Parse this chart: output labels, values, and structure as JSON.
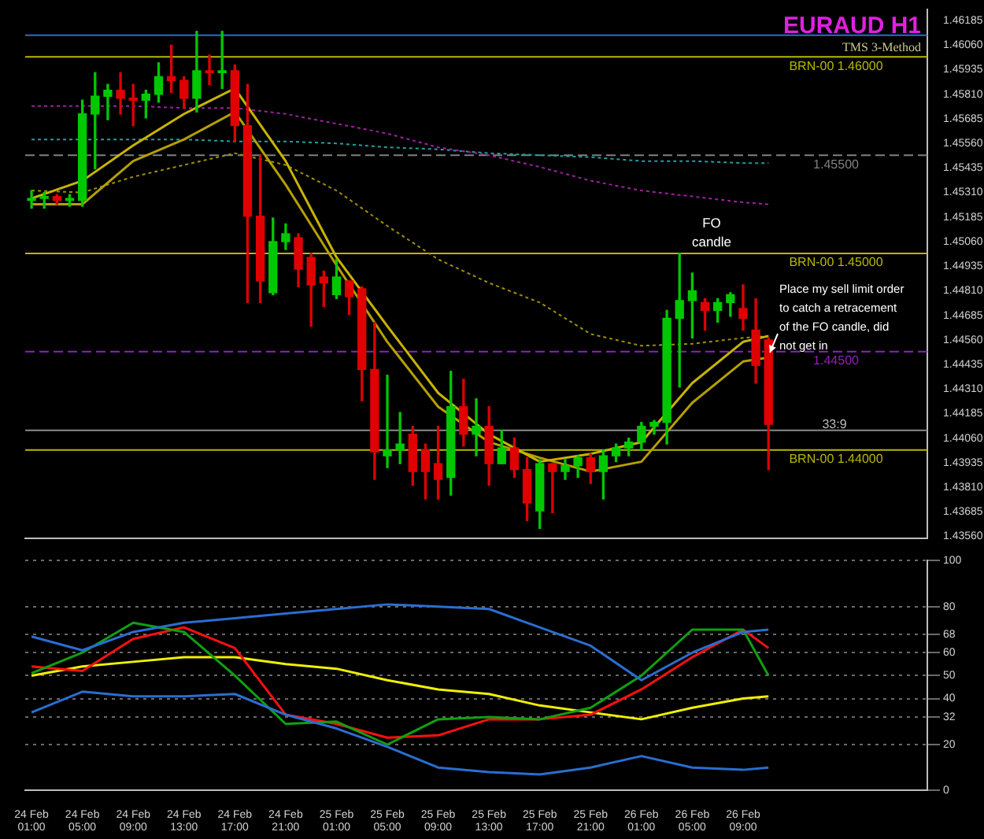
{
  "chart_data": [
    {
      "type": "candlestick",
      "title": "EURAUD H1",
      "subtitle": "TMS 3-Method",
      "categories": [
        null,
        null,
        null,
        null,
        null,
        null,
        null,
        null,
        null,
        null,
        null,
        null,
        null,
        null,
        null,
        null,
        null,
        null,
        null,
        null,
        null,
        null,
        null,
        null,
        null,
        null,
        null,
        null,
        null,
        null,
        null,
        null,
        null,
        null,
        null,
        null,
        null,
        null,
        null,
        null,
        null,
        null,
        null,
        null,
        null,
        null,
        null,
        null,
        null,
        null,
        null,
        null,
        null,
        null,
        null,
        null,
        null,
        null,
        null,
        null,
        null,
        null,
        null,
        null,
        null,
        null,
        null,
        null,
        null,
        null,
        null
      ],
      "ohlc": [
        [
          1.4527,
          1.4532,
          1.4523,
          1.4528
        ],
        [
          1.4528,
          1.4531,
          1.4523,
          1.4529
        ],
        [
          1.4529,
          1.453,
          1.4525,
          1.4527
        ],
        [
          1.4527,
          1.453,
          1.4524,
          1.4528
        ],
        [
          1.4527,
          1.4578,
          1.4524,
          1.4571
        ],
        [
          1.4571,
          1.4592,
          1.4543,
          1.458
        ],
        [
          1.458,
          1.4586,
          1.4568,
          1.4583
        ],
        [
          1.4583,
          1.4592,
          1.4571,
          1.4579
        ],
        [
          1.4579,
          1.4586,
          1.4565,
          1.4578
        ],
        [
          1.4578,
          1.4583,
          1.4569,
          1.4581
        ],
        [
          1.4581,
          1.4597,
          1.4577,
          1.459
        ],
        [
          1.459,
          1.4606,
          1.4582,
          1.4588
        ],
        [
          1.4588,
          1.459,
          1.4574,
          1.4579
        ],
        [
          1.4579,
          1.4613,
          1.4572,
          1.4593
        ],
        [
          1.4593,
          1.4601,
          1.4586,
          1.4592
        ],
        [
          1.4592,
          1.4613,
          1.4584,
          1.4593
        ],
        [
          1.4593,
          1.4596,
          1.4557,
          1.4565
        ],
        [
          1.4565,
          1.4586,
          1.4475,
          1.4519
        ],
        [
          1.4519,
          1.455,
          1.4475,
          1.4486
        ],
        [
          1.448,
          1.4518,
          1.4479,
          1.4506
        ],
        [
          1.4506,
          1.4515,
          1.4502,
          1.451
        ],
        [
          1.4508,
          1.451,
          1.4483,
          1.4492
        ],
        [
          1.4498,
          1.45,
          1.4463,
          1.4484
        ],
        [
          1.4488,
          1.4491,
          1.4473,
          1.4485
        ],
        [
          1.4479,
          1.4497,
          1.4477,
          1.4488
        ],
        [
          1.4486,
          1.4486,
          1.4469,
          1.4478
        ],
        [
          1.4482,
          1.4483,
          1.4425,
          1.4441
        ],
        [
          1.4441,
          1.4465,
          1.4385,
          1.4399
        ],
        [
          1.4397,
          1.4438,
          1.4391,
          1.44
        ],
        [
          1.44,
          1.4419,
          1.4393,
          1.4403
        ],
        [
          1.4408,
          1.4412,
          1.4382,
          1.4389
        ],
        [
          1.44,
          1.4403,
          1.4375,
          1.4389
        ],
        [
          1.4393,
          1.4412,
          1.4375,
          1.4385
        ],
        [
          1.4386,
          1.444,
          1.4377,
          1.4422
        ],
        [
          1.4422,
          1.4436,
          1.4402,
          1.4408
        ],
        [
          1.4408,
          1.4426,
          1.4397,
          1.4412
        ],
        [
          1.4412,
          1.4422,
          1.4382,
          1.4393
        ],
        [
          1.4393,
          1.441,
          1.4393,
          1.4401
        ],
        [
          1.4401,
          1.4406,
          1.4386,
          1.439
        ],
        [
          1.439,
          1.4396,
          1.4364,
          1.4373
        ],
        [
          1.4369,
          1.4395,
          1.436,
          1.4393
        ],
        [
          1.4393,
          1.4393,
          1.4368,
          1.4389
        ],
        [
          1.4389,
          1.4395,
          1.4385,
          1.4392
        ],
        [
          1.4392,
          1.4397,
          1.4386,
          1.4396
        ],
        [
          1.4396,
          1.4398,
          1.4383,
          1.4389
        ],
        [
          1.4389,
          1.44,
          1.4375,
          1.4397
        ],
        [
          1.4397,
          1.4403,
          1.4394,
          1.4401
        ],
        [
          1.4401,
          1.4406,
          1.4397,
          1.4404
        ],
        [
          1.4404,
          1.4414,
          1.44,
          1.4412
        ],
        [
          1.4412,
          1.4415,
          1.4408,
          1.4414
        ],
        [
          1.4414,
          1.4471,
          1.4403,
          1.4467
        ],
        [
          1.4467,
          1.45,
          1.4432,
          1.4476
        ],
        [
          1.4476,
          1.449,
          1.4457,
          1.4481
        ],
        [
          1.4475,
          1.4477,
          1.4461,
          1.4471
        ],
        [
          1.4471,
          1.4477,
          1.4465,
          1.4475
        ],
        [
          1.4475,
          1.448,
          1.4468,
          1.4479
        ],
        [
          1.4472,
          1.4484,
          1.4461,
          1.4467
        ],
        [
          1.4461,
          1.4477,
          1.4434,
          1.4443
        ],
        [
          1.4456,
          1.4457,
          1.439,
          1.4413
        ],
        null,
        null,
        null,
        null,
        null,
        null,
        null,
        null,
        null,
        null,
        null,
        null
      ],
      "colors": [
        "#00c800",
        "#00c800",
        "#e00000",
        "#00c800",
        "#00c800",
        "#00c800",
        "#00c800",
        "#e00000",
        "#e00000",
        "#00c800",
        "#00c800",
        "#e00000",
        "#e00000",
        "#00c800",
        "#e00000",
        "#00c800",
        "#e00000",
        "#e00000",
        "#e00000",
        "#00c800",
        "#00c800",
        "#e00000",
        "#e00000",
        "#e00000",
        "#00c800",
        "#e00000",
        "#e00000",
        "#e00000",
        "#00c800",
        "#00c800",
        "#e00000",
        "#e00000",
        "#e00000",
        "#00c800",
        "#e00000",
        "#00c800",
        "#e00000",
        "#00c800",
        "#e00000",
        "#e00000",
        "#00c800",
        "#e00000",
        "#00c800",
        "#00c800",
        "#e00000",
        "#00c800",
        "#00c800",
        "#00c800",
        "#00c800",
        "#00c800",
        "#00c800",
        "#00c800",
        "#00c800",
        "#e00000",
        "#00c800",
        "#00c800",
        "#e00000",
        "#e00000",
        "#e00000",
        null,
        null,
        null,
        null,
        null,
        null,
        null,
        null,
        null,
        null,
        null,
        null
      ],
      "series": [
        {
          "type": "line",
          "color": "#c8b400",
          "line_style": "solid",
          "values": [
            1.4528,
            null,
            null,
            null,
            1.4537,
            null,
            null,
            null,
            1.4555,
            null,
            null,
            null,
            1.4571,
            null,
            null,
            null,
            1.4584,
            null,
            null,
            null,
            1.4547,
            null,
            null,
            null,
            1.4498,
            null,
            null,
            null,
            1.4463,
            null,
            null,
            null,
            1.4429,
            null,
            null,
            null,
            1.4408,
            null,
            null,
            null,
            1.4394,
            null,
            null,
            null,
            1.4398,
            null,
            null,
            null,
            1.4404,
            null,
            null,
            null,
            1.4434,
            null,
            null,
            null,
            1.4455,
            null,
            1.4458,
            null,
            null,
            null,
            null,
            null,
            null,
            null,
            null,
            null,
            null,
            null,
            null
          ]
        },
        {
          "type": "line",
          "color": "#b4a000",
          "line_style": "solid",
          "values": [
            1.4525,
            null,
            null,
            null,
            1.4525,
            null,
            null,
            null,
            1.4547,
            null,
            null,
            null,
            1.4558,
            null,
            null,
            null,
            1.4572,
            null,
            null,
            null,
            1.4535,
            null,
            null,
            null,
            1.4494,
            null,
            null,
            null,
            1.4455,
            null,
            null,
            null,
            1.4422,
            null,
            null,
            null,
            1.4404,
            null,
            null,
            null,
            1.4396,
            null,
            null,
            null,
            1.4389,
            null,
            null,
            null,
            1.4394,
            null,
            null,
            null,
            1.4424,
            null,
            null,
            null,
            1.4445,
            null,
            1.4447,
            null,
            null,
            null,
            null,
            null,
            null,
            null,
            null,
            null,
            null,
            null,
            null
          ]
        },
        {
          "type": "line",
          "color": "#a09000",
          "line_style": "dotted",
          "values": [
            1.4532,
            null,
            null,
            null,
            1.4531,
            null,
            null,
            null,
            1.4539,
            null,
            null,
            null,
            1.4545,
            null,
            null,
            null,
            1.4551,
            null,
            null,
            null,
            1.4545,
            null,
            null,
            null,
            1.4532,
            null,
            null,
            null,
            1.4514,
            null,
            null,
            null,
            1.4497,
            null,
            null,
            null,
            1.4485,
            null,
            null,
            null,
            1.4475,
            null,
            null,
            null,
            1.4459,
            null,
            null,
            null,
            1.4453,
            null,
            null,
            null,
            1.4454,
            null,
            null,
            null,
            1.4457,
            null,
            1.4458,
            null,
            null,
            null,
            null,
            null,
            null,
            null,
            null,
            null,
            null,
            null,
            null
          ]
        },
        {
          "type": "line",
          "color": "#a020a0",
          "line_style": "dotted",
          "values": [
            1.4575,
            null,
            null,
            null,
            1.4575,
            null,
            null,
            null,
            1.4575,
            null,
            null,
            null,
            1.4574,
            null,
            null,
            null,
            1.4574,
            null,
            null,
            null,
            1.4571,
            null,
            null,
            null,
            1.4566,
            null,
            null,
            null,
            1.4561,
            null,
            null,
            null,
            1.4554,
            null,
            null,
            null,
            1.455,
            null,
            null,
            null,
            1.4544,
            null,
            null,
            null,
            1.4537,
            null,
            null,
            null,
            1.4532,
            null,
            null,
            null,
            1.4529,
            null,
            null,
            null,
            1.4526,
            null,
            1.4525,
            null,
            null,
            null,
            null,
            null,
            null,
            null,
            null,
            null,
            null,
            null,
            null
          ]
        },
        {
          "type": "line",
          "color": "#20a0a0",
          "line_style": "dotted",
          "values": [
            1.4558,
            null,
            null,
            null,
            1.4558,
            null,
            null,
            null,
            1.4558,
            null,
            null,
            null,
            1.4558,
            null,
            null,
            null,
            1.4557,
            null,
            null,
            null,
            1.4557,
            null,
            null,
            null,
            1.4556,
            null,
            null,
            null,
            1.4554,
            null,
            null,
            null,
            1.4553,
            null,
            null,
            null,
            1.4551,
            null,
            null,
            null,
            1.455,
            null,
            null,
            null,
            1.4549,
            null,
            null,
            null,
            1.4547,
            null,
            null,
            null,
            1.4547,
            null,
            null,
            null,
            1.4546,
            null,
            1.4546,
            null,
            null,
            null,
            null,
            null,
            null,
            null,
            null,
            null,
            null,
            null,
            null
          ]
        }
      ],
      "ylim": [
        1.4355,
        1.4624
      ],
      "yticks": [
        {
          "value": 1.4356,
          "label": "1.43560"
        },
        1.43685,
        {
          "value": 1.4381,
          "label": "1.43810"
        },
        1.43935,
        {
          "value": 1.4406,
          "label": "1.44060"
        },
        1.44185,
        {
          "value": 1.4431,
          "label": "1.44310"
        },
        1.44435,
        {
          "value": 1.4456,
          "label": "1.44560"
        },
        1.44685,
        {
          "value": 1.4481,
          "label": "1.44810"
        },
        1.44935,
        {
          "value": 1.4506,
          "label": "1.45060"
        },
        1.45185,
        {
          "value": 1.4531,
          "label": "1.45310"
        },
        1.45435,
        {
          "value": 1.4556,
          "label": "1.45560"
        },
        1.45685,
        {
          "value": 1.4581,
          "label": "1.45810"
        },
        1.45935,
        {
          "value": 1.4606,
          "label": "1.46060"
        },
        1.46185
      ],
      "ref_lines": [
        {
          "axis": "y",
          "value": 1.4611,
          "color": "#1e6fd9"
        },
        {
          "axis": "y",
          "value": 1.46,
          "label": "BRN-00 1.46000",
          "color": "#b8b800"
        },
        {
          "axis": "y",
          "value": 1.455,
          "label": "1.45500",
          "color": "#808080",
          "line_style": "dashed"
        },
        {
          "axis": "y",
          "value": 1.45,
          "label": "BRN-00 1.45000",
          "color": "#b8b800"
        },
        {
          "axis": "y",
          "value": 1.445,
          "label": "1.44500",
          "color": "#9020c0",
          "line_style": "dashed"
        },
        {
          "axis": "y",
          "value": 1.441,
          "color": "#8a8a8a"
        },
        {
          "axis": "y",
          "value": 1.44,
          "label": "BRN-00 1.44000",
          "color": "#b8b800"
        }
      ],
      "annotations": [
        "FO\ncandle",
        "Place my sell limit order\nto catch a retracement\nof the FO candle, did\nnot get in",
        "33:9"
      ],
      "legend": false
    },
    {
      "type": "line",
      "categories": [
        "24 Feb 01:00",
        null,
        null,
        null,
        "24 Feb 05:00",
        null,
        null,
        null,
        "24 Feb 09:00",
        null,
        null,
        null,
        "24 Feb 13:00",
        null,
        null,
        null,
        "24 Feb 17:00",
        null,
        null,
        null,
        "24 Feb 21:00",
        null,
        null,
        null,
        "25 Feb 01:00",
        null,
        null,
        null,
        "25 Feb 05:00",
        null,
        null,
        null,
        "25 Feb 09:00",
        null,
        null,
        null,
        "25 Feb 13:00",
        null,
        null,
        null,
        "25 Feb 17:00",
        null,
        null,
        null,
        "25 Feb 21:00",
        null,
        null,
        null,
        "26 Feb 01:00",
        null,
        null,
        null,
        "26 Feb 05:00",
        null,
        null,
        null,
        "26 Feb 09:00",
        null,
        null,
        null,
        null,
        null,
        null,
        null,
        null,
        null,
        null,
        null,
        null,
        null,
        null
      ],
      "series": [
        {
          "color": "#2a6ed0",
          "values": [
            67,
            null,
            null,
            null,
            61,
            null,
            null,
            null,
            69,
            null,
            null,
            null,
            73,
            null,
            null,
            null,
            75,
            null,
            null,
            null,
            77,
            null,
            null,
            null,
            79,
            null,
            null,
            null,
            81,
            null,
            null,
            null,
            80,
            null,
            null,
            null,
            79,
            null,
            null,
            null,
            71,
            null,
            null,
            null,
            63,
            null,
            null,
            null,
            48,
            null,
            null,
            null,
            60,
            null,
            null,
            null,
            69,
            null,
            70,
            null,
            null,
            null,
            null,
            null,
            null,
            null,
            null,
            null,
            null,
            null,
            null
          ]
        },
        {
          "color": "#2a6ed0",
          "values": [
            34,
            null,
            null,
            null,
            43,
            null,
            null,
            null,
            41,
            null,
            null,
            null,
            41,
            null,
            null,
            null,
            42,
            null,
            null,
            null,
            33,
            null,
            null,
            null,
            27,
            null,
            null,
            null,
            19,
            null,
            null,
            null,
            10,
            null,
            null,
            null,
            8,
            null,
            null,
            null,
            7,
            null,
            null,
            null,
            10,
            null,
            null,
            null,
            15,
            null,
            null,
            null,
            10,
            null,
            null,
            null,
            9,
            null,
            10,
            null,
            null,
            null,
            null,
            null,
            null,
            null,
            null,
            null,
            null,
            null,
            null
          ]
        },
        {
          "color": "#10a010",
          "values": [
            51,
            null,
            null,
            null,
            60,
            null,
            null,
            null,
            73,
            null,
            null,
            null,
            69,
            null,
            null,
            null,
            50,
            null,
            null,
            null,
            29,
            null,
            null,
            null,
            30,
            null,
            null,
            null,
            20,
            null,
            null,
            null,
            31,
            null,
            null,
            null,
            32,
            null,
            null,
            null,
            31,
            null,
            null,
            null,
            36,
            null,
            null,
            null,
            50,
            null,
            null,
            null,
            70,
            null,
            null,
            null,
            70,
            null,
            50,
            null,
            null,
            null,
            null,
            null,
            null,
            null,
            null,
            null,
            null,
            null,
            null
          ]
        },
        {
          "color": "#ff1010",
          "values": [
            54,
            null,
            null,
            null,
            52,
            null,
            null,
            null,
            66,
            null,
            null,
            null,
            71,
            null,
            null,
            null,
            62,
            null,
            null,
            null,
            33,
            null,
            null,
            null,
            29,
            null,
            null,
            null,
            23,
            null,
            null,
            null,
            24,
            null,
            null,
            null,
            31,
            null,
            null,
            null,
            31,
            null,
            null,
            null,
            33,
            null,
            null,
            null,
            44,
            null,
            null,
            null,
            58,
            null,
            null,
            null,
            70,
            null,
            62,
            null,
            null,
            null,
            null,
            null,
            null,
            null,
            null,
            null,
            null,
            null,
            null
          ]
        },
        {
          "color": "#f0f000",
          "values": [
            50,
            null,
            null,
            null,
            54,
            null,
            null,
            null,
            56,
            null,
            null,
            null,
            58,
            null,
            null,
            null,
            58,
            null,
            null,
            null,
            55,
            null,
            null,
            null,
            53,
            null,
            null,
            null,
            48,
            null,
            null,
            null,
            44,
            null,
            null,
            null,
            42,
            null,
            null,
            null,
            37,
            null,
            null,
            null,
            34,
            null,
            null,
            null,
            31,
            null,
            null,
            null,
            36,
            null,
            null,
            null,
            40,
            null,
            41,
            null,
            null,
            null,
            null,
            null,
            null,
            null,
            null,
            null,
            null,
            null,
            null
          ]
        }
      ],
      "ylim": [
        0,
        100
      ],
      "yticks": [
        0,
        20,
        32,
        40,
        50,
        60,
        68,
        80,
        100
      ],
      "grid": "y",
      "legend": false,
      "line_style": "solid",
      "marker": "none"
    }
  ]
}
